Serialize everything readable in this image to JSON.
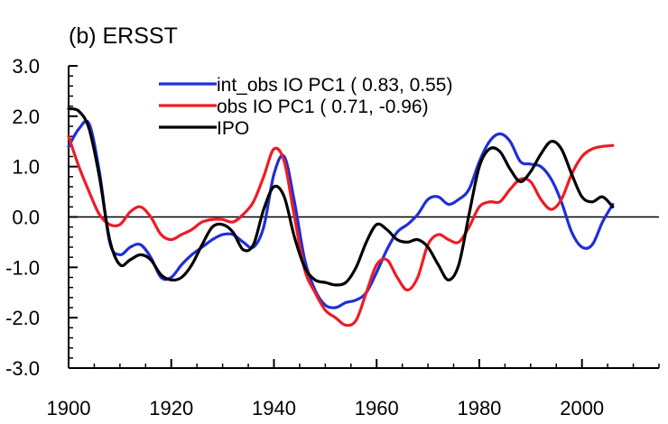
{
  "chart_data": {
    "type": "line",
    "title": "(b) ERSST",
    "xlabel": "",
    "ylabel": "",
    "xlim": [
      1900,
      2015
    ],
    "ylim": [
      -3.0,
      3.0
    ],
    "x_ticks": [
      1900,
      1920,
      1940,
      1960,
      1980,
      2000
    ],
    "x_tick_labels": [
      "1900",
      "1920",
      "1940",
      "1960",
      "1980",
      "2000"
    ],
    "y_ticks": [
      3.0,
      2.0,
      1.0,
      0.0,
      -1.0,
      -2.0,
      -3.0
    ],
    "y_tick_labels": [
      "3.0",
      "2.0",
      "1.0",
      "0.0",
      "-1.0",
      "-2.0",
      "-3.0"
    ],
    "zero_line": true,
    "grid": false,
    "legend_position": "top",
    "series": [
      {
        "name": "int_obs IO PC1 ( 0.83,  0.55)",
        "color": "#1f2fd6",
        "x": [
          1900,
          1902,
          1904,
          1906,
          1908,
          1910,
          1912,
          1914,
          1916,
          1918,
          1920,
          1922,
          1924,
          1926,
          1928,
          1930,
          1932,
          1934,
          1936,
          1938,
          1940,
          1942,
          1944,
          1946,
          1948,
          1950,
          1952,
          1954,
          1956,
          1958,
          1960,
          1962,
          1964,
          1966,
          1968,
          1970,
          1972,
          1974,
          1976,
          1978,
          1980,
          1982,
          1984,
          1986,
          1988,
          1990,
          1992,
          1994,
          1996,
          1998,
          2000,
          2002,
          2004,
          2006
        ],
        "y": [
          1.4,
          1.75,
          1.85,
          0.9,
          -0.5,
          -0.75,
          -0.6,
          -0.55,
          -0.8,
          -1.2,
          -1.2,
          -0.95,
          -0.75,
          -0.6,
          -0.45,
          -0.35,
          -0.35,
          -0.5,
          -0.6,
          -0.2,
          0.85,
          1.2,
          0.3,
          -0.85,
          -1.45,
          -1.75,
          -1.8,
          -1.7,
          -1.65,
          -1.5,
          -1.1,
          -0.65,
          -0.3,
          -0.15,
          0.05,
          0.35,
          0.4,
          0.25,
          0.35,
          0.55,
          1.1,
          1.5,
          1.65,
          1.5,
          1.1,
          1.05,
          1.0,
          0.75,
          0.3,
          -0.3,
          -0.6,
          -0.55,
          -0.1,
          0.25
        ]
      },
      {
        "name": "obs IO PC1 ( 0.71, -0.96)",
        "color": "#ee1c25",
        "x": [
          1900,
          1902,
          1904,
          1906,
          1908,
          1910,
          1912,
          1914,
          1916,
          1918,
          1920,
          1922,
          1924,
          1926,
          1928,
          1930,
          1932,
          1934,
          1936,
          1938,
          1940,
          1942,
          1944,
          1946,
          1948,
          1950,
          1952,
          1954,
          1956,
          1958,
          1960,
          1962,
          1964,
          1966,
          1968,
          1970,
          1972,
          1974,
          1976,
          1978,
          1980,
          1982,
          1984,
          1986,
          1988,
          1990,
          1992,
          1994,
          1996,
          1998,
          2000,
          2002,
          2004,
          2006
        ],
        "y": [
          1.6,
          1.0,
          0.5,
          0.05,
          -0.15,
          -0.15,
          0.1,
          0.2,
          0.0,
          -0.35,
          -0.45,
          -0.35,
          -0.25,
          -0.1,
          -0.05,
          -0.05,
          -0.1,
          0.05,
          0.3,
          0.8,
          1.35,
          1.1,
          0.0,
          -1.05,
          -1.5,
          -1.85,
          -2.0,
          -2.15,
          -2.05,
          -1.5,
          -0.95,
          -0.85,
          -1.2,
          -1.45,
          -1.2,
          -0.55,
          -0.35,
          -0.45,
          -0.5,
          -0.2,
          0.2,
          0.3,
          0.3,
          0.55,
          0.75,
          0.7,
          0.35,
          0.15,
          0.35,
          0.85,
          1.2,
          1.35,
          1.4,
          1.42
        ]
      },
      {
        "name": "IPO",
        "color": "#000000",
        "x": [
          1900,
          1902,
          1904,
          1906,
          1908,
          1910,
          1912,
          1914,
          1916,
          1918,
          1920,
          1922,
          1924,
          1926,
          1928,
          1930,
          1932,
          1934,
          1936,
          1938,
          1940,
          1942,
          1944,
          1946,
          1948,
          1950,
          1952,
          1954,
          1956,
          1958,
          1960,
          1962,
          1964,
          1966,
          1968,
          1970,
          1972,
          1974,
          1976,
          1978,
          1980,
          1982,
          1984,
          1986,
          1988,
          1990,
          1992,
          1994,
          1996,
          1998,
          2000,
          2002,
          2004,
          2006
        ],
        "y": [
          2.15,
          2.1,
          1.75,
          0.8,
          -0.45,
          -0.95,
          -0.85,
          -0.75,
          -0.85,
          -1.15,
          -1.25,
          -1.2,
          -0.95,
          -0.55,
          -0.2,
          -0.15,
          -0.3,
          -0.65,
          -0.55,
          0.15,
          0.6,
          0.4,
          -0.4,
          -1.0,
          -1.25,
          -1.3,
          -1.35,
          -1.3,
          -1.0,
          -0.5,
          -0.15,
          -0.25,
          -0.45,
          -0.5,
          -0.45,
          -0.6,
          -0.95,
          -1.25,
          -0.95,
          0.05,
          1.0,
          1.35,
          1.3,
          0.95,
          0.7,
          0.9,
          1.25,
          1.5,
          1.35,
          0.85,
          0.4,
          0.3,
          0.4,
          0.2
        ]
      }
    ]
  }
}
